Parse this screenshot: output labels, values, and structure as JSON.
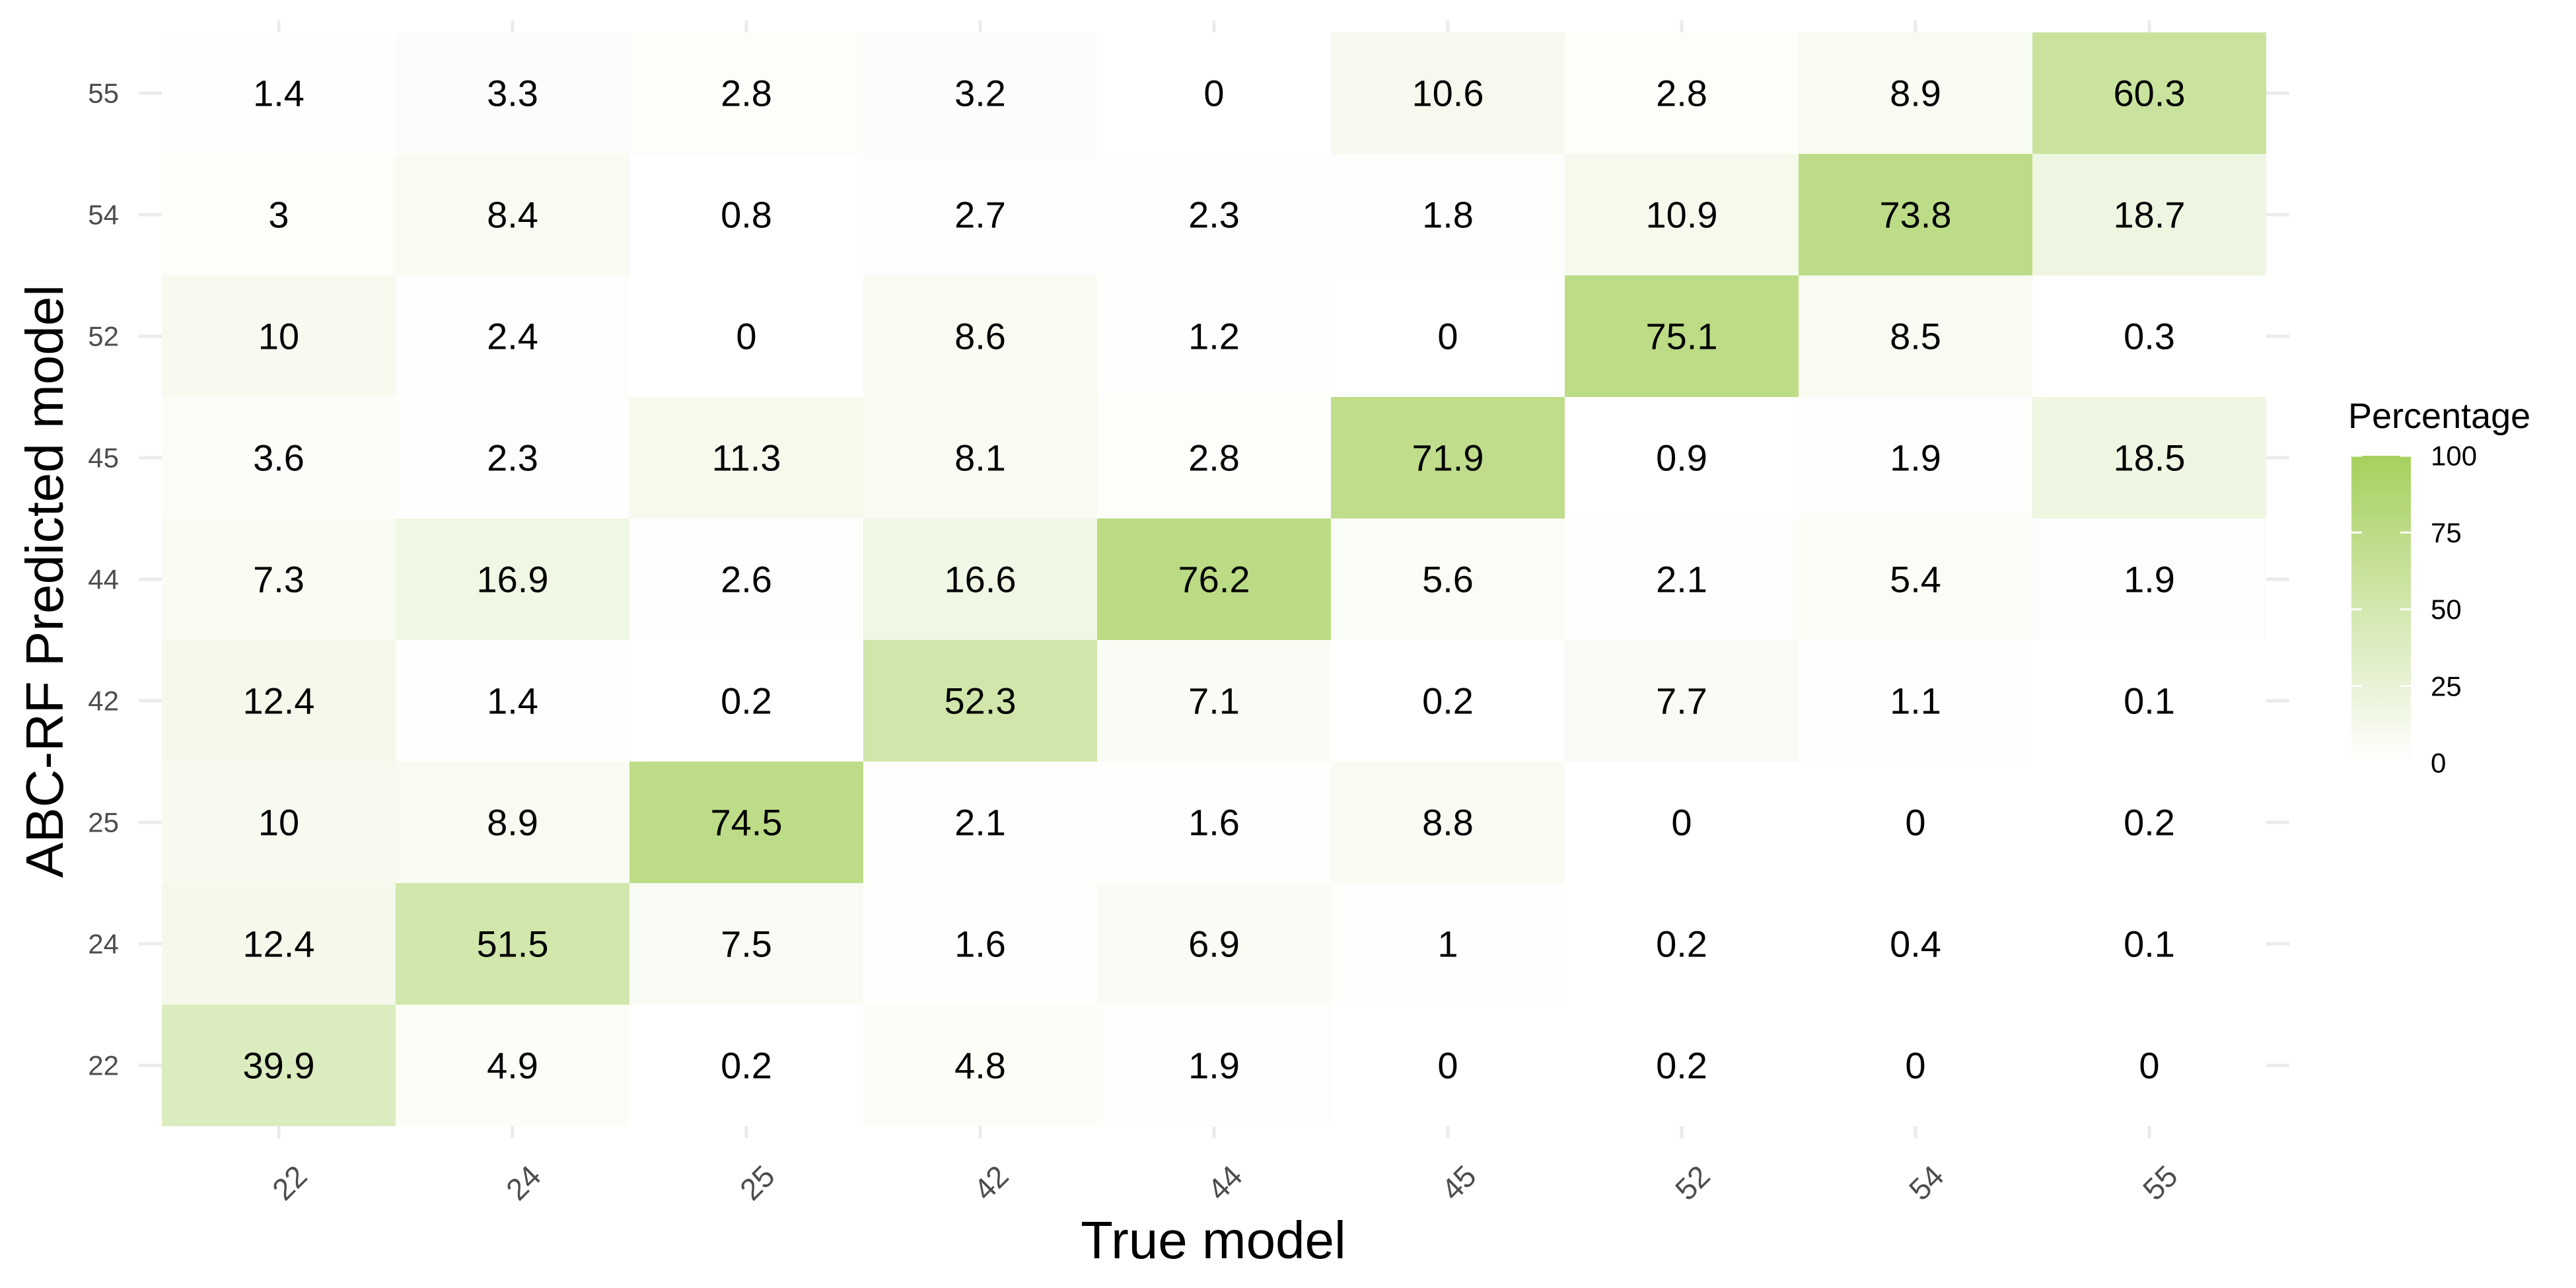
{
  "chart_data": {
    "type": "heatmap",
    "title": "",
    "xlabel": "True model",
    "ylabel": "ABC-RF Predicted model",
    "x_categories": [
      "22",
      "24",
      "25",
      "42",
      "44",
      "45",
      "52",
      "54",
      "55"
    ],
    "y_categories": [
      "22",
      "24",
      "25",
      "42",
      "44",
      "45",
      "52",
      "54",
      "55"
    ],
    "values": [
      [
        39.9,
        4.9,
        0.2,
        4.8,
        1.9,
        0,
        0.2,
        0,
        0
      ],
      [
        12.4,
        51.5,
        7.5,
        1.6,
        6.9,
        1,
        0.2,
        0.4,
        0.1
      ],
      [
        10,
        8.9,
        74.5,
        2.1,
        1.6,
        8.8,
        0,
        0,
        0.2
      ],
      [
        12.4,
        1.4,
        0.2,
        52.3,
        7.1,
        0.2,
        7.7,
        1.1,
        0.1
      ],
      [
        7.3,
        16.9,
        2.6,
        16.6,
        76.2,
        5.6,
        2.1,
        5.4,
        1.9
      ],
      [
        3.6,
        2.3,
        11.3,
        8.1,
        2.8,
        71.9,
        0.9,
        1.9,
        18.5
      ],
      [
        10,
        2.4,
        0,
        8.6,
        1.2,
        0,
        75.1,
        8.5,
        0.3
      ],
      [
        3,
        8.4,
        0.8,
        2.7,
        2.3,
        1.8,
        10.9,
        73.8,
        18.7
      ],
      [
        1.4,
        3.3,
        2.8,
        3.2,
        0,
        10.6,
        2.8,
        8.9,
        60.3
      ]
    ],
    "value_range": [
      0,
      100
    ],
    "legend": {
      "title": "Percentage",
      "ticks": [
        "0",
        "25",
        "50",
        "75",
        "100"
      ],
      "position": "right"
    },
    "colors": {
      "low": "#ffffff",
      "high": "#a6d05e"
    },
    "grid": true
  }
}
